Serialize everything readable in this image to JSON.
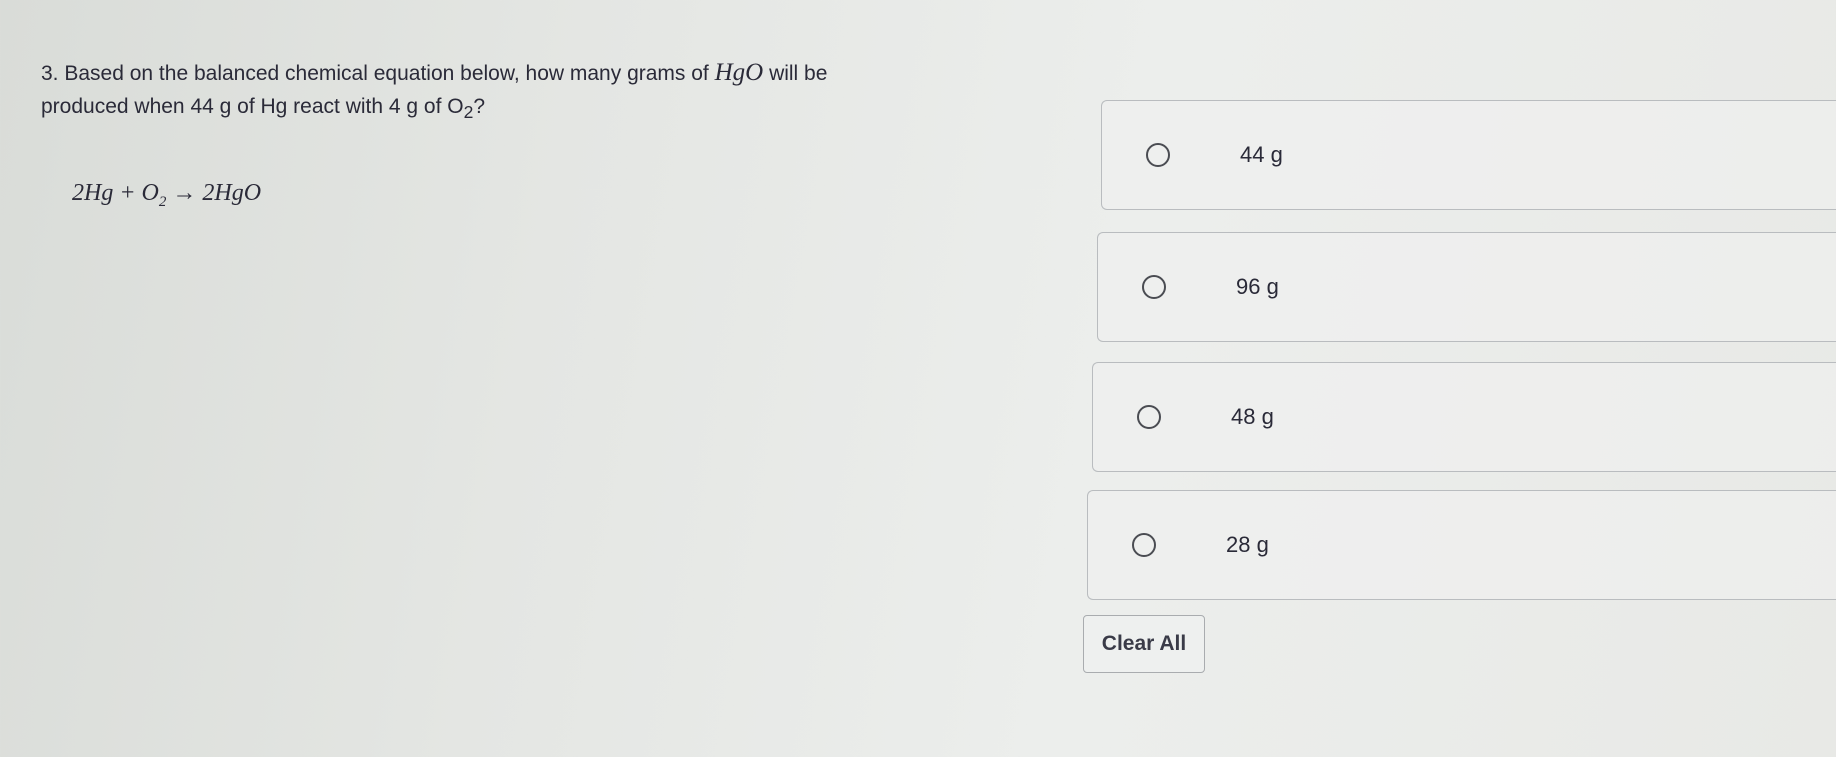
{
  "question": {
    "number": "3.",
    "text_part1": "Based on the balanced chemical equation below, how many grams of",
    "formula_inline": "HgO",
    "text_part2": "will be",
    "text_line2": "produced when 44 g of Hg react with 4 g of O",
    "subscript": "2",
    "text_end": "?"
  },
  "equation": {
    "left": "2Hg + O",
    "sub": "2",
    "arrow": " → ",
    "right": "2HgO"
  },
  "options": [
    {
      "label": "44 g",
      "selected": false
    },
    {
      "label": "96 g",
      "selected": false
    },
    {
      "label": "48 g",
      "selected": false
    },
    {
      "label": "28 g",
      "selected": false
    }
  ],
  "clear_all_label": "Clear All"
}
